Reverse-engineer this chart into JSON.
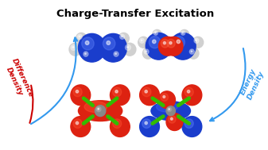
{
  "title": "Charge-Transfer Excitation",
  "title_fontsize": 9.5,
  "title_weight": "bold",
  "background_color": "#ffffff",
  "label_difference": "Difference\nDensity",
  "label_energy": "Energy\nDensity",
  "label_difference_color": "#cc0000",
  "label_energy_color": "#3399ee",
  "arrow_color": "#3399ee",
  "mol_blue": "#1a3dcc",
  "mol_blue_light": "#4466ee",
  "mol_red": "#dd2211",
  "mol_red_light": "#ff5533",
  "mol_white": "#e8e8e8",
  "mol_white_light": "#ffffff",
  "mol_green": "#33bb00",
  "mol_gray": "#777777",
  "mol_gray_dark": "#444444"
}
